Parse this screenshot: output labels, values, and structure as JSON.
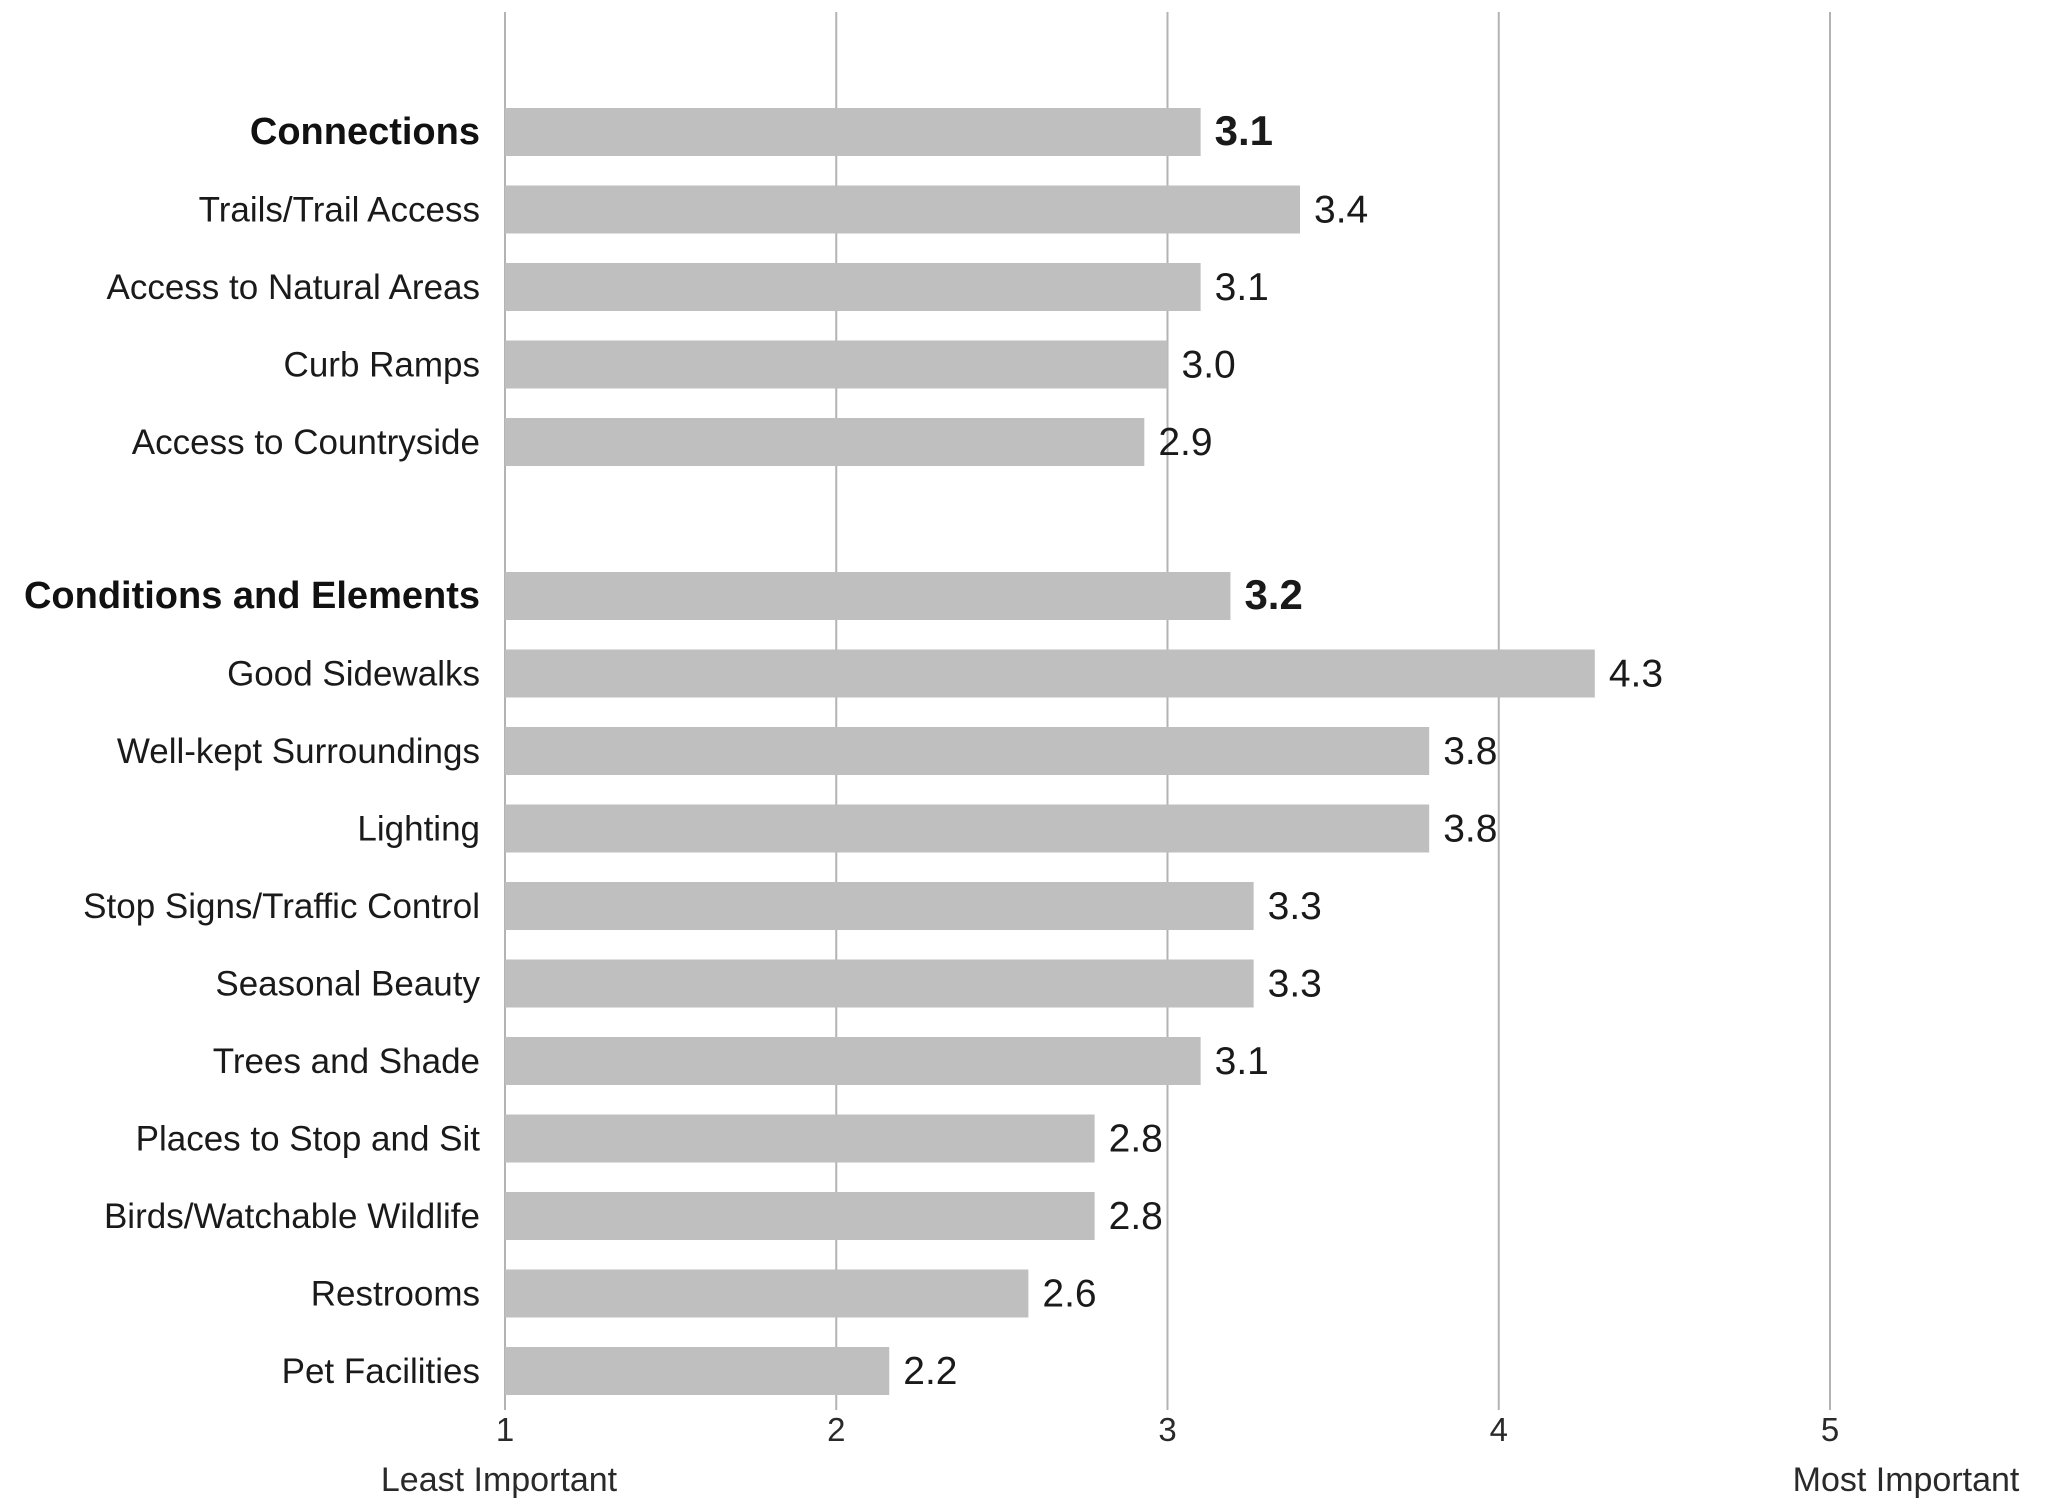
{
  "chart_data": {
    "type": "bar",
    "orientation": "horizontal",
    "title": "",
    "xlabel": "",
    "ylabel": "",
    "xlim": [
      1,
      5
    ],
    "x_ticks": [
      1,
      2,
      3,
      4,
      5
    ],
    "x_tick_labels": [
      "1",
      "2",
      "3",
      "4",
      "5"
    ],
    "x_axis_end_labels": {
      "left": "Least Important",
      "right": "Most Important"
    },
    "grid": true,
    "bar_color": "#bfbfc0",
    "gridline_color": "#b3b3b3",
    "groups": [
      {
        "name": "Connections",
        "value": 3.1,
        "value_label": "3.1",
        "items": [
          {
            "label": "Trails/Trail Access",
            "value": 3.4,
            "value_label": "3.4"
          },
          {
            "label": "Access to Natural Areas",
            "value": 3.1,
            "value_label": "3.1"
          },
          {
            "label": "Curb Ramps",
            "value": 3.0,
            "value_label": "3.0"
          },
          {
            "label": "Access to Countryside",
            "value": 2.93,
            "value_label": "2.9"
          }
        ]
      },
      {
        "name": "Conditions and Elements",
        "value": 3.19,
        "value_label": "3.2",
        "items": [
          {
            "label": "Good Sidewalks",
            "value": 4.29,
            "value_label": "4.3"
          },
          {
            "label": "Well-kept Surroundings",
            "value": 3.79,
            "value_label": "3.8"
          },
          {
            "label": "Lighting",
            "value": 3.79,
            "value_label": "3.8"
          },
          {
            "label": "Stop Signs/Traffic Control",
            "value": 3.26,
            "value_label": "3.3"
          },
          {
            "label": "Seasonal Beauty",
            "value": 3.26,
            "value_label": "3.3"
          },
          {
            "label": "Trees and Shade",
            "value": 3.1,
            "value_label": "3.1"
          },
          {
            "label": "Places to Stop and Sit",
            "value": 2.78,
            "value_label": "2.8"
          },
          {
            "label": "Birds/Watchable Wildlife",
            "value": 2.78,
            "value_label": "2.8"
          },
          {
            "label": "Restrooms",
            "value": 2.58,
            "value_label": "2.6"
          },
          {
            "label": "Pet Facilities",
            "value": 2.16,
            "value_label": "2.2"
          }
        ]
      }
    ]
  }
}
